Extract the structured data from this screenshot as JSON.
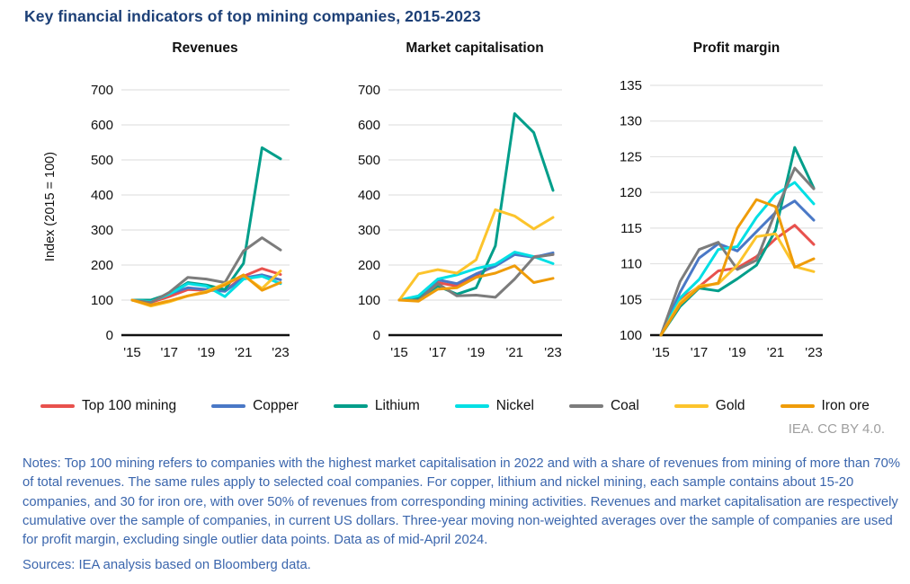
{
  "title": "Key financial indicators of top mining companies, 2015-2023",
  "y_axis_label": "Index (2015 = 100)",
  "attribution": "IEA. CC BY 4.0.",
  "notes": "Notes: Top 100 mining refers to companies with the highest market capitalisation in 2022 and with a share of revenues from mining of more than 70% of total revenues. The same rules apply to selected coal companies. For copper, lithium and nickel mining, each sample contains about 15-20 companies, and 30 for iron ore, with over 50% of revenues from corresponding mining activities. Revenues and market capitalisation are respectively cumulative over the sample of companies, in current US dollars. Three-year moving non-weighted averages over the sample of companies are used for profit margin, excluding single outlier data points. Data as of mid-April 2024.",
  "sources": "Sources: IEA analysis based on Bloomberg data.",
  "colors": {
    "top100": "#e8514d",
    "copper": "#4a78c6",
    "lithium": "#009e8a",
    "nickel": "#00dfe4",
    "coal": "#7c7c7c",
    "gold": "#fcc42c",
    "iron_ore": "#ef9c09",
    "grid": "#e2e2e2",
    "axis": "#111111",
    "tick_text": "#111111"
  },
  "legend": [
    {
      "label": "Top 100 mining",
      "color": "top100"
    },
    {
      "label": "Copper",
      "color": "copper"
    },
    {
      "label": "Lithium",
      "color": "lithium"
    },
    {
      "label": "Nickel",
      "color": "nickel"
    },
    {
      "label": "Coal",
      "color": "coal"
    },
    {
      "label": "Gold",
      "color": "gold"
    },
    {
      "label": "Iron ore",
      "color": "iron_ore"
    }
  ],
  "chart_data": [
    {
      "type": "line",
      "title": "Revenues",
      "x": [
        2015,
        2016,
        2017,
        2018,
        2019,
        2020,
        2021,
        2022,
        2023
      ],
      "x_ticks": [
        2015,
        2017,
        2019,
        2021,
        2023
      ],
      "x_tick_labels": [
        "'15",
        "'17",
        "'19",
        "'21",
        "'23"
      ],
      "ylim": [
        0,
        700
      ],
      "yticks": [
        0,
        100,
        200,
        300,
        400,
        500,
        600,
        700
      ],
      "grid": true,
      "series": [
        {
          "name": "Top 100 mining",
          "color": "top100",
          "values": [
            100,
            93,
            110,
            130,
            128,
            127,
            168,
            190,
            173
          ]
        },
        {
          "name": "Copper",
          "color": "copper",
          "values": [
            100,
            95,
            118,
            135,
            130,
            125,
            163,
            172,
            158
          ]
        },
        {
          "name": "Lithium",
          "color": "lithium",
          "values": [
            100,
            100,
            118,
            150,
            143,
            130,
            205,
            535,
            503
          ]
        },
        {
          "name": "Nickel",
          "color": "nickel",
          "values": [
            100,
            95,
            117,
            147,
            140,
            110,
            160,
            168,
            147
          ]
        },
        {
          "name": "Coal",
          "color": "coal",
          "values": [
            100,
            93,
            122,
            165,
            160,
            150,
            240,
            278,
            243
          ]
        },
        {
          "name": "Gold",
          "color": "gold",
          "values": [
            100,
            83,
            95,
            112,
            125,
            147,
            170,
            133,
            183
          ]
        },
        {
          "name": "Iron ore",
          "color": "iron_ore",
          "values": [
            100,
            86,
            98,
            112,
            122,
            143,
            172,
            128,
            150
          ]
        }
      ]
    },
    {
      "type": "line",
      "title": "Market capitalisation",
      "x": [
        2015,
        2016,
        2017,
        2018,
        2019,
        2020,
        2021,
        2022,
        2023
      ],
      "x_ticks": [
        2015,
        2017,
        2019,
        2021,
        2023
      ],
      "x_tick_labels": [
        "'15",
        "'17",
        "'19",
        "'21",
        "'23"
      ],
      "ylim": [
        0,
        700
      ],
      "yticks": [
        0,
        100,
        200,
        300,
        400,
        500,
        600,
        700
      ],
      "grid": true,
      "series": [
        {
          "name": "Top 100 mining",
          "color": "top100",
          "values": [
            100,
            105,
            150,
            140,
            170,
            200,
            233,
            224,
            230
          ]
        },
        {
          "name": "Copper",
          "color": "copper",
          "values": [
            100,
            107,
            158,
            147,
            175,
            197,
            230,
            222,
            235
          ]
        },
        {
          "name": "Lithium",
          "color": "lithium",
          "values": [
            100,
            105,
            140,
            117,
            135,
            255,
            632,
            578,
            413
          ]
        },
        {
          "name": "Nickel",
          "color": "nickel",
          "values": [
            100,
            112,
            160,
            172,
            190,
            202,
            237,
            224,
            204
          ]
        },
        {
          "name": "Coal",
          "color": "coal",
          "values": [
            100,
            100,
            147,
            112,
            114,
            108,
            160,
            222,
            230
          ]
        },
        {
          "name": "Gold",
          "color": "gold",
          "values": [
            100,
            175,
            187,
            177,
            215,
            358,
            340,
            303,
            336
          ]
        },
        {
          "name": "Iron ore",
          "color": "iron_ore",
          "values": [
            100,
            97,
            131,
            135,
            165,
            177,
            198,
            150,
            162
          ]
        }
      ]
    },
    {
      "type": "line",
      "title": "Profit margin",
      "x": [
        2015,
        2016,
        2017,
        2018,
        2019,
        2020,
        2021,
        2022,
        2023
      ],
      "x_ticks": [
        2015,
        2017,
        2019,
        2021,
        2023
      ],
      "x_tick_labels": [
        "'15",
        "'17",
        "'19",
        "'21",
        "'23"
      ],
      "ylim": [
        100,
        135
      ],
      "yticks": [
        100,
        105,
        110,
        115,
        120,
        125,
        130,
        135
      ],
      "grid": true,
      "series": [
        {
          "name": "Top 100 mining",
          "color": "top100",
          "values": [
            100,
            105.0,
            106.8,
            109.0,
            109.4,
            111.0,
            113.5,
            115.4,
            112.7
          ]
        },
        {
          "name": "Copper",
          "color": "copper",
          "values": [
            100,
            106.0,
            110.8,
            112.8,
            111.8,
            114.5,
            117.2,
            118.8,
            116.1
          ]
        },
        {
          "name": "Lithium",
          "color": "lithium",
          "values": [
            100,
            104.0,
            106.6,
            106.2,
            107.9,
            109.8,
            114.7,
            126.3,
            120.6
          ]
        },
        {
          "name": "Nickel",
          "color": "nickel",
          "values": [
            100,
            105.2,
            107.8,
            112.0,
            112.4,
            116.5,
            119.7,
            121.4,
            118.4
          ]
        },
        {
          "name": "Coal",
          "color": "coal",
          "values": [
            100,
            107.5,
            112.0,
            113.0,
            109.2,
            110.5,
            117.3,
            123.4,
            120.5
          ]
        },
        {
          "name": "Gold",
          "color": "gold",
          "values": [
            100,
            104.6,
            106.9,
            107.2,
            109.8,
            113.8,
            114.2,
            109.6,
            108.9
          ]
        },
        {
          "name": "Iron ore",
          "color": "iron_ore",
          "values": [
            100,
            104.3,
            106.7,
            107.3,
            115.0,
            119.0,
            118.0,
            109.5,
            110.7
          ]
        }
      ]
    }
  ]
}
